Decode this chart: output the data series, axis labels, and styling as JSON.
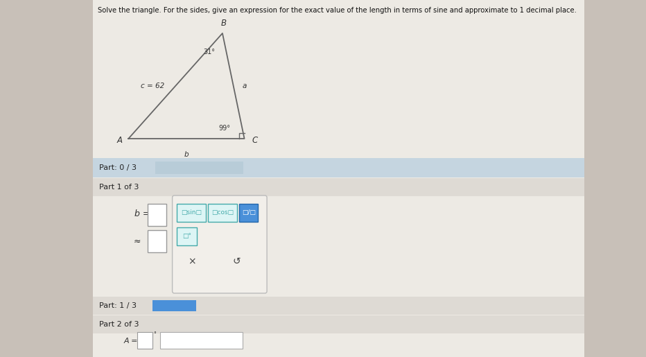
{
  "title": "Solve the triangle. For the sides, give an expression for the exact value of the length in terms of sine and approximate to 1 decimal place.",
  "bg_color": "#c8c0b8",
  "panel_color": "#edeae4",
  "triangle": {
    "label_A": "A",
    "label_B": "B",
    "label_C": "C",
    "label_c": "c = 62",
    "label_a": "a",
    "label_b": "b",
    "angle_B": "31°",
    "angle_C": "99°"
  },
  "part0_3_label": "Part: 0 / 3",
  "part1_3_label": "Part 1 of 3",
  "part1_3_progress_label": "Part: 1 / 3",
  "part2_3_label": "Part 2 of 3",
  "b_eq_label": "b =",
  "approx_label": "≈",
  "A_eq_label": "A =",
  "blue_bar_color": "#4a90d9",
  "progress_bar_part0_color": "#b8ccd8",
  "teal_color": "#44b8b8",
  "x_button_label": "×",
  "undo_label": "↺"
}
